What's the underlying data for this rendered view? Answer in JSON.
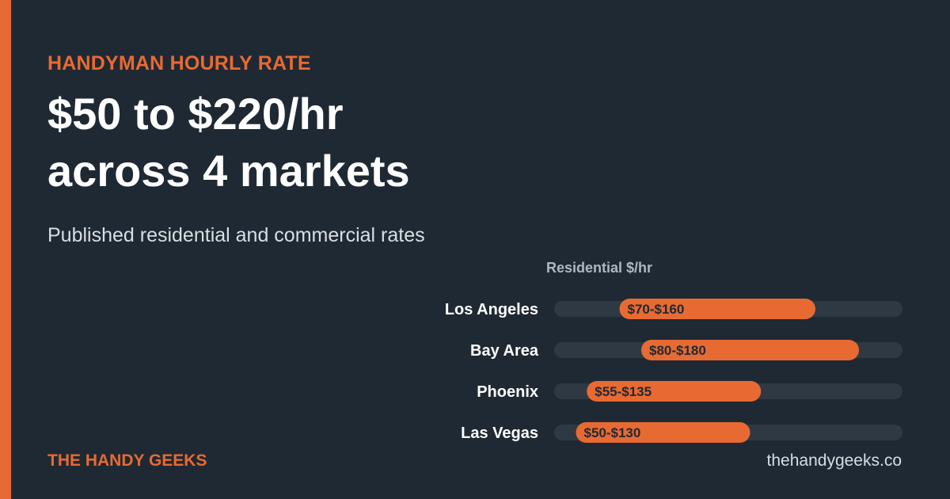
{
  "header": {
    "eyebrow": "HANDYMAN HOURLY RATE",
    "headline_line1": "$50 to $220/hr",
    "headline_line2": "across 4 markets",
    "subtitle": "Published residential and commercial rates"
  },
  "footer": {
    "brand": "THE HANDY GEEKS",
    "url": "thehandygeeks.co"
  },
  "colors": {
    "background": "#1f2933",
    "accent": "#e86a33",
    "track": "#2e3944",
    "label": "#ffffff"
  },
  "chart_data": {
    "type": "bar",
    "subtype": "range",
    "title": "Residential $/hr",
    "categories": [
      "Los Angeles",
      "Bay Area",
      "Phoenix",
      "Las Vegas"
    ],
    "series": [
      {
        "ranges": [
          [
            70,
            160
          ],
          [
            80,
            180
          ],
          [
            55,
            135
          ],
          [
            50,
            130
          ]
        ],
        "labels": [
          "$70-$160",
          "$80-$180",
          "$55-$135",
          "$50-$130"
        ]
      }
    ],
    "xlim": [
      40,
      200
    ],
    "grid": false,
    "legend": "none"
  }
}
